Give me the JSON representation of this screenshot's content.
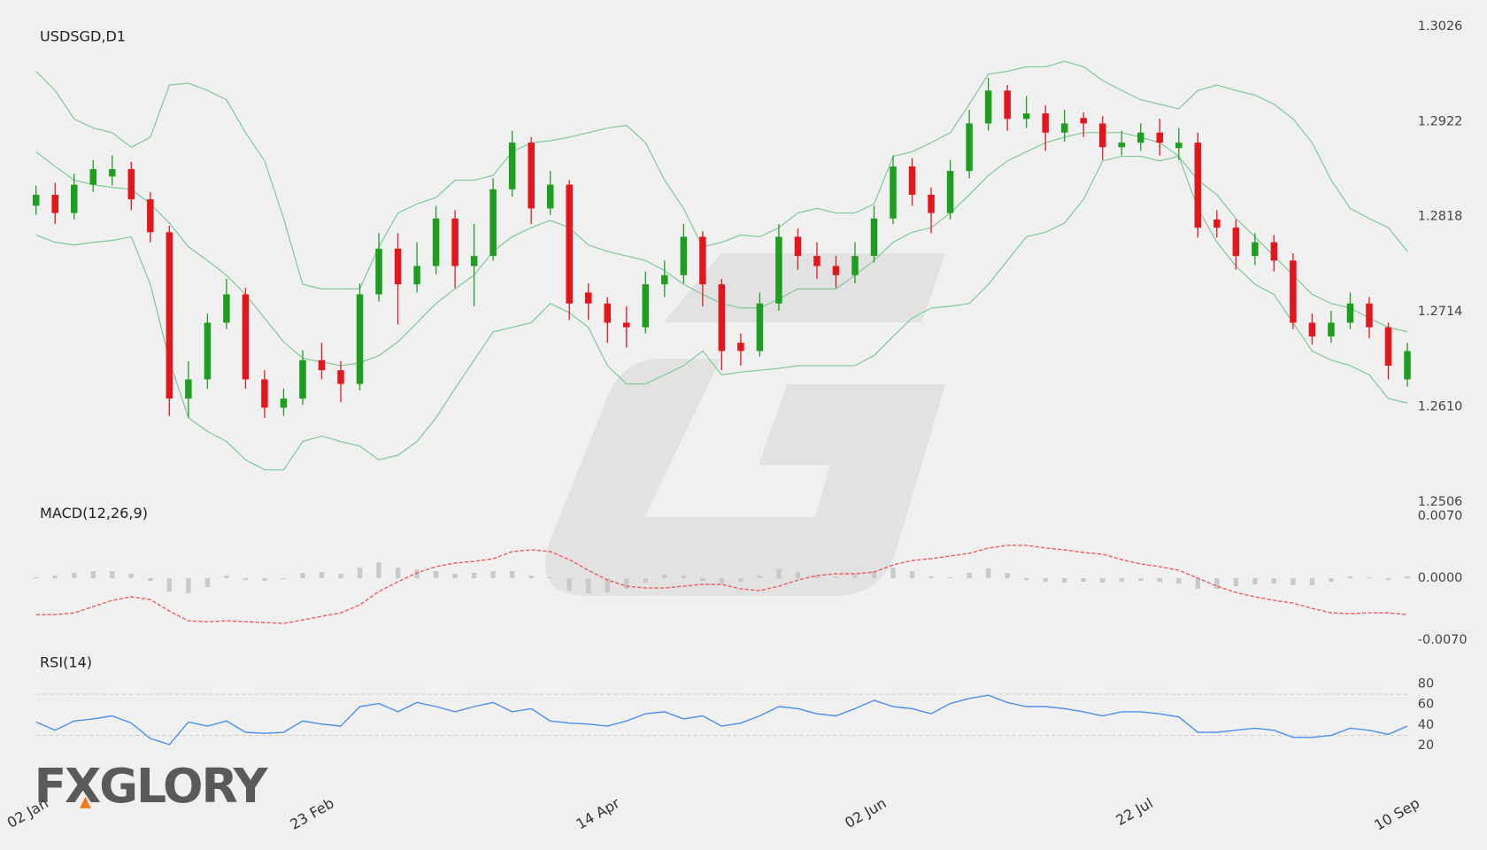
{
  "logo": "FXGLORY",
  "chart_data": [
    {
      "type": "candlestick",
      "title": "USDSGD,D1",
      "categories": [
        "02 Jan",
        null,
        null,
        null,
        null,
        null,
        null,
        null,
        null,
        null,
        null,
        null,
        null,
        null,
        null,
        "23 Feb",
        null,
        null,
        null,
        null,
        null,
        null,
        null,
        null,
        null,
        null,
        null,
        null,
        null,
        null,
        "14 Apr",
        null,
        null,
        null,
        null,
        null,
        null,
        null,
        null,
        null,
        null,
        null,
        null,
        null,
        "02 Jun",
        null,
        null,
        null,
        null,
        null,
        null,
        null,
        null,
        null,
        null,
        null,
        null,
        null,
        "22 Jul",
        null,
        null,
        null,
        null,
        null,
        null,
        null,
        null,
        null,
        null,
        null,
        null,
        null,
        "10 Sep"
      ],
      "open": [
        1.283,
        1.2842,
        1.2822,
        1.2853,
        1.2862,
        1.287,
        1.2837,
        1.2801,
        1.2619,
        1.264,
        1.2702,
        1.2733,
        1.264,
        1.2609,
        1.2619,
        1.2661,
        1.265,
        1.2635,
        1.2733,
        1.2783,
        1.2744,
        1.2764,
        1.2816,
        1.2764,
        1.2775,
        1.2848,
        1.2899,
        1.2827,
        1.2853,
        1.2735,
        1.2723,
        1.2702,
        1.2697,
        1.2744,
        1.2754,
        1.2796,
        1.2744,
        1.268,
        1.2671,
        1.2723,
        1.2796,
        1.2775,
        1.2764,
        1.2754,
        1.2775,
        1.2816,
        1.2873,
        1.2842,
        1.2822,
        1.2868,
        1.292,
        1.2956,
        1.2925,
        1.2931,
        1.291,
        1.2926,
        1.292,
        1.2894,
        1.2899,
        1.291,
        1.2893,
        1.2899,
        1.2815,
        1.2806,
        1.2775,
        1.279,
        1.277,
        1.2702,
        1.2687,
        1.2702,
        1.2723,
        1.2697,
        1.264
      ],
      "high": [
        1.2852,
        1.2855,
        1.2865,
        1.288,
        1.2885,
        1.2878,
        1.2845,
        1.2808,
        1.266,
        1.2712,
        1.275,
        1.274,
        1.265,
        1.263,
        1.2672,
        1.268,
        1.266,
        1.2745,
        1.28,
        1.28,
        1.279,
        1.283,
        1.2825,
        1.281,
        1.286,
        1.2912,
        1.2905,
        1.2868,
        1.2858,
        1.2745,
        1.273,
        1.272,
        1.2758,
        1.277,
        1.281,
        1.2802,
        1.275,
        1.269,
        1.2735,
        1.281,
        1.2805,
        1.279,
        1.2775,
        1.279,
        1.283,
        1.2885,
        1.2882,
        1.285,
        1.288,
        1.2935,
        1.297,
        1.2962,
        1.295,
        1.294,
        1.2935,
        1.2932,
        1.2928,
        1.2912,
        1.292,
        1.2925,
        1.2915,
        1.291,
        1.2825,
        1.2815,
        1.28,
        1.2798,
        1.2778,
        1.2712,
        1.2715,
        1.2735,
        1.273,
        1.2702,
        1.268
      ],
      "low": [
        1.282,
        1.281,
        1.2815,
        1.2845,
        1.2852,
        1.2825,
        1.279,
        1.26,
        1.2598,
        1.263,
        1.2695,
        1.263,
        1.2598,
        1.26,
        1.2612,
        1.264,
        1.2615,
        1.2628,
        1.2725,
        1.27,
        1.2735,
        1.2755,
        1.274,
        1.272,
        1.277,
        1.284,
        1.281,
        1.282,
        1.2705,
        1.2705,
        1.268,
        1.2675,
        1.269,
        1.273,
        1.2745,
        1.272,
        1.265,
        1.2655,
        1.2665,
        1.2715,
        1.276,
        1.275,
        1.274,
        1.2745,
        1.2768,
        1.281,
        1.283,
        1.28,
        1.2815,
        1.286,
        1.2912,
        1.2912,
        1.2915,
        1.289,
        1.29,
        1.2905,
        1.288,
        1.2885,
        1.289,
        1.2885,
        1.288,
        1.2795,
        1.2795,
        1.276,
        1.2765,
        1.2758,
        1.2695,
        1.2678,
        1.268,
        1.2695,
        1.2685,
        1.264,
        1.2632
      ],
      "close": [
        1.2842,
        1.2822,
        1.2853,
        1.287,
        1.287,
        1.2837,
        1.2801,
        1.2619,
        1.264,
        1.2702,
        1.2733,
        1.264,
        1.2609,
        1.2619,
        1.2661,
        1.265,
        1.2635,
        1.2733,
        1.2783,
        1.2744,
        1.2764,
        1.2816,
        1.2764,
        1.2775,
        1.2848,
        1.2899,
        1.2827,
        1.2853,
        1.2723,
        1.2723,
        1.2702,
        1.2697,
        1.2744,
        1.2754,
        1.2796,
        1.2744,
        1.2671,
        1.2671,
        1.2723,
        1.2796,
        1.2775,
        1.2764,
        1.2754,
        1.2775,
        1.2816,
        1.2873,
        1.2842,
        1.2822,
        1.2868,
        1.292,
        1.2956,
        1.2925,
        1.2931,
        1.291,
        1.292,
        1.292,
        1.2894,
        1.2899,
        1.291,
        1.2899,
        1.2899,
        1.2806,
        1.2806,
        1.2775,
        1.279,
        1.277,
        1.2702,
        1.2687,
        1.2702,
        1.2723,
        1.2697,
        1.2655,
        1.2671
      ],
      "up_color": "#1e9e1e",
      "down_color": "#e5161b",
      "bands": {
        "color": "#7cc896",
        "upper": [
          1.2977,
          1.2956,
          1.2925,
          1.2915,
          1.291,
          1.2894,
          1.2905,
          1.2962,
          1.2964,
          1.2956,
          1.2946,
          1.291,
          1.2879,
          1.2816,
          1.2744,
          1.2739,
          1.2739,
          1.2739,
          1.2785,
          1.2822,
          1.2832,
          1.2839,
          1.2858,
          1.2858,
          1.2863,
          1.2889,
          1.2899,
          1.2901,
          1.2905,
          1.291,
          1.2915,
          1.2918,
          1.2899,
          1.2858,
          1.2827,
          1.2785,
          1.279,
          1.2798,
          1.2796,
          1.2806,
          1.2822,
          1.2827,
          1.2822,
          1.2822,
          1.2832,
          1.2884,
          1.2889,
          1.2899,
          1.291,
          1.2941,
          1.2974,
          1.2977,
          1.2982,
          1.2982,
          1.2988,
          1.2982,
          1.2967,
          1.2956,
          1.2946,
          1.2941,
          1.2936,
          1.2956,
          1.2962,
          1.2956,
          1.2951,
          1.2941,
          1.2925,
          1.2899,
          1.2858,
          1.2827,
          1.2816,
          1.2806,
          1.278
        ],
        "middle": [
          1.2889,
          1.2873,
          1.2858,
          1.2853,
          1.285,
          1.2848,
          1.2832,
          1.2811,
          1.2785,
          1.277,
          1.2754,
          1.2733,
          1.2707,
          1.2681,
          1.2663,
          1.2659,
          1.2655,
          1.2658,
          1.2666,
          1.2681,
          1.2702,
          1.2723,
          1.2739,
          1.2754,
          1.278,
          1.2796,
          1.2806,
          1.2814,
          1.2806,
          1.2787,
          1.278,
          1.2775,
          1.277,
          1.2759,
          1.2744,
          1.2733,
          1.2723,
          1.2718,
          1.2718,
          1.2728,
          1.2739,
          1.2739,
          1.2739,
          1.2754,
          1.277,
          1.279,
          1.2801,
          1.2806,
          1.2822,
          1.2842,
          1.2863,
          1.2879,
          1.2889,
          1.2899,
          1.2905,
          1.291,
          1.291,
          1.291,
          1.2905,
          1.2899,
          1.2884,
          1.2858,
          1.2842,
          1.2816,
          1.2796,
          1.2775,
          1.2754,
          1.2733,
          1.2723,
          1.2718,
          1.2707,
          1.2697,
          1.2692
        ],
        "lower": [
          1.2798,
          1.279,
          1.2787,
          1.279,
          1.2792,
          1.2796,
          1.2744,
          1.2661,
          1.2598,
          1.2583,
          1.2572,
          1.2552,
          1.2541,
          1.2541,
          1.2572,
          1.2578,
          1.2572,
          1.2567,
          1.2552,
          1.2557,
          1.2572,
          1.2598,
          1.263,
          1.2661,
          1.2692,
          1.2697,
          1.2702,
          1.2723,
          1.2713,
          1.2697,
          1.2655,
          1.2635,
          1.2635,
          1.2645,
          1.2655,
          1.2671,
          1.2645,
          1.2648,
          1.265,
          1.2652,
          1.2655,
          1.2655,
          1.2655,
          1.2655,
          1.2666,
          1.2687,
          1.2707,
          1.2718,
          1.272,
          1.2723,
          1.2744,
          1.277,
          1.2796,
          1.2801,
          1.2811,
          1.2837,
          1.2879,
          1.2884,
          1.2884,
          1.2879,
          1.2884,
          1.2827,
          1.279,
          1.2764,
          1.2744,
          1.2733,
          1.2702,
          1.2671,
          1.2661,
          1.2655,
          1.2645,
          1.2619,
          1.2614
        ]
      },
      "ylim": [
        1.2506,
        1.3026
      ],
      "yticks": [
        1.2506,
        {
          "value": 1.261,
          "label": "1.2610"
        },
        1.2714,
        1.2818,
        1.2922,
        1.3026
      ]
    },
    {
      "type": "macd",
      "title": "MACD(12,26,9)",
      "histogram": {
        "color": "#c9c9c9",
        "values": [
          0.0001,
          0.0003,
          0.0006,
          0.0008,
          0.0008,
          0.0005,
          -0.0003,
          -0.0015,
          -0.0017,
          -0.001,
          0.0003,
          -0.0002,
          -0.0003,
          -0.0001,
          0.0006,
          0.0007,
          0.0005,
          0.0012,
          0.0018,
          0.0012,
          0.001,
          0.0008,
          0.0005,
          0.0006,
          0.0008,
          0.0008,
          0.0003,
          0.0001,
          -0.0014,
          -0.0017,
          -0.0016,
          -0.0012,
          -0.0005,
          0.0004,
          0.0003,
          -0.0003,
          -0.0006,
          -0.0004,
          0.0003,
          0.001,
          0.0007,
          0.0003,
          0.0002,
          0.0004,
          0.0008,
          0.0012,
          0.0008,
          0.0002,
          0.0001,
          0.0006,
          0.0011,
          0.0006,
          -0.0002,
          -0.0004,
          -0.0005,
          -0.0004,
          -0.0005,
          -0.0004,
          -0.0003,
          -0.0004,
          -0.0006,
          -0.0012,
          -0.0012,
          -0.0009,
          -0.0007,
          -0.0006,
          -0.0008,
          -0.0008,
          -0.0004,
          0.0002,
          0.0001,
          -0.0002,
          0.0002
        ]
      },
      "signal": {
        "color": "#ef5b5b",
        "values": [
          -0.0041,
          -0.0041,
          -0.0039,
          -0.0032,
          -0.0025,
          -0.0021,
          -0.0024,
          -0.0037,
          -0.0048,
          -0.0049,
          -0.0048,
          -0.0049,
          -0.005,
          -0.0051,
          -0.0047,
          -0.0043,
          -0.0039,
          -0.003,
          -0.0015,
          -0.0004,
          0.0006,
          0.0013,
          0.0017,
          0.0019,
          0.0022,
          0.003,
          0.0032,
          0.003,
          0.0021,
          0.0009,
          -0.0002,
          -0.0009,
          -0.0011,
          -0.0011,
          -0.0009,
          -0.0007,
          -0.0007,
          -0.0012,
          -0.0014,
          -0.0009,
          -0.0002,
          0.0003,
          0.0005,
          0.0005,
          0.0007,
          0.0015,
          0.002,
          0.0022,
          0.0025,
          0.0028,
          0.0034,
          0.0037,
          0.0037,
          0.0034,
          0.0032,
          0.0029,
          0.0027,
          0.0021,
          0.0016,
          0.0013,
          0.0009,
          0,
          -0.0009,
          -0.0016,
          -0.0021,
          -0.0025,
          -0.0028,
          -0.0034,
          -0.0039,
          -0.004,
          -0.0039,
          -0.0039,
          -0.0041
        ]
      },
      "ylim": [
        -0.007,
        0.007
      ],
      "yticks": [
        {
          "value": 0.007,
          "label": "0.0070"
        },
        {
          "value": 0,
          "label": "0.0000"
        },
        {
          "value": -0.007,
          "label": "-0.0070"
        }
      ]
    },
    {
      "type": "rsi",
      "title": "RSI(14)",
      "color": "#4a8ef0",
      "values": [
        43,
        35,
        44,
        46,
        49,
        42,
        27,
        21,
        43,
        39,
        44,
        33,
        32,
        33,
        44,
        41,
        39,
        58,
        61,
        53,
        62,
        58,
        53,
        58,
        62,
        53,
        56,
        44,
        42,
        41,
        39,
        44,
        51,
        53,
        46,
        49,
        39,
        42,
        49,
        58,
        56,
        51,
        49,
        56,
        64,
        58,
        56,
        51,
        61,
        66,
        69,
        62,
        58,
        58,
        56,
        53,
        49,
        53,
        53,
        51,
        48,
        33,
        33,
        35,
        37,
        35,
        28,
        28,
        30,
        37,
        35,
        31,
        39
      ],
      "levels": [
        30,
        70
      ],
      "ylim": [
        20,
        80
      ],
      "yticks": [
        80,
        60,
        40,
        20
      ]
    }
  ]
}
